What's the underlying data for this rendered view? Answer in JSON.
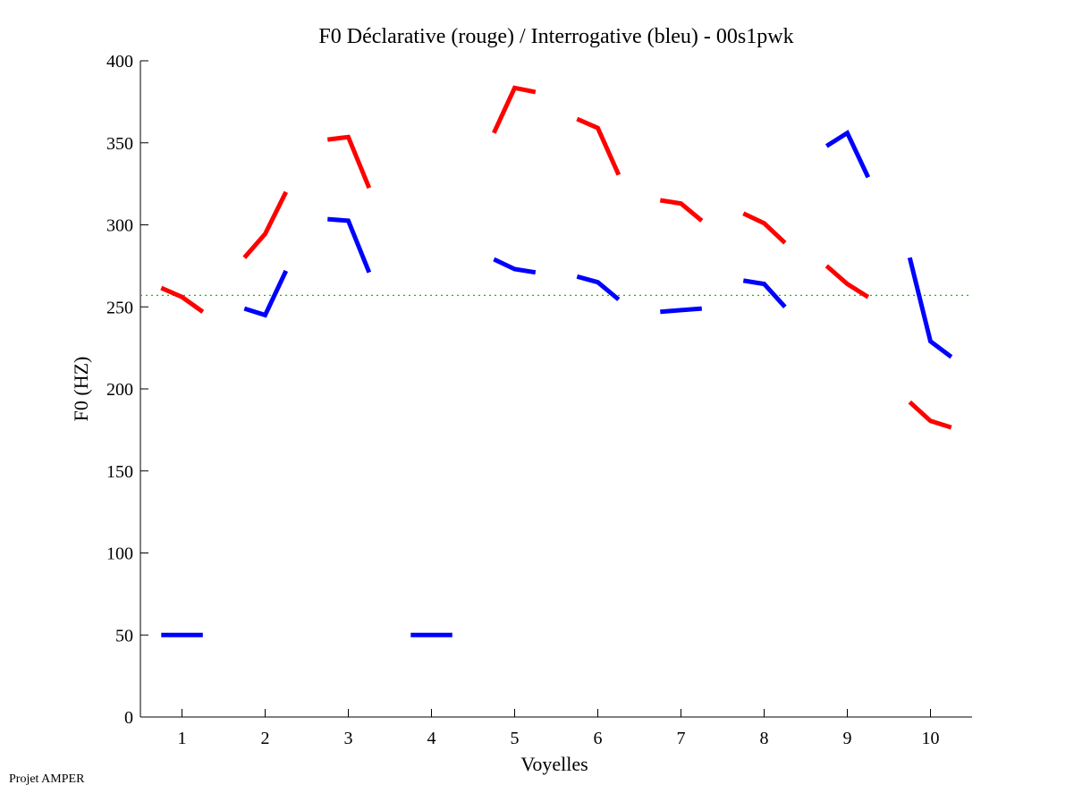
{
  "chart_data": {
    "type": "line",
    "title": "F0 Déclarative (rouge) / Interrogative (bleu) - 00s1pwk",
    "xlabel": "Voyelles",
    "ylabel": "F0 (HZ)",
    "xlim": [
      0.5,
      10.5
    ],
    "ylim": [
      0,
      400
    ],
    "xticks": [
      1,
      2,
      3,
      4,
      5,
      6,
      7,
      8,
      9,
      10
    ],
    "xtick_labels": [
      "1",
      "2",
      "3",
      "4",
      "5",
      "6",
      "7",
      "8",
      "9",
      "10"
    ],
    "yticks": [
      0,
      50,
      100,
      150,
      200,
      250,
      300,
      350,
      400
    ],
    "ytick_labels": [
      "0",
      "50",
      "100",
      "150",
      "200",
      "250",
      "300",
      "350",
      "400"
    ],
    "grid": false,
    "reference_line": {
      "y": 257,
      "color": "#00cc00",
      "style": "dotted"
    },
    "series": [
      {
        "name": "Déclarative",
        "color": "#ff0000",
        "segments": [
          {
            "vowel": 1,
            "values": [
              261.5,
              256,
              247
            ]
          },
          {
            "vowel": 2,
            "values": [
              280,
              294.5,
              320
            ]
          },
          {
            "vowel": 3,
            "values": [
              352,
              353.5,
              322.5
            ]
          },
          {
            "vowel": 5,
            "values": [
              356,
              383.5,
              381
            ]
          },
          {
            "vowel": 6,
            "values": [
              364.5,
              359,
              330.5
            ]
          },
          {
            "vowel": 7,
            "values": [
              315,
              313,
              302.5
            ]
          },
          {
            "vowel": 8,
            "values": [
              307,
              301,
              289
            ]
          },
          {
            "vowel": 9,
            "values": [
              275,
              264,
              256
            ]
          },
          {
            "vowel": 10,
            "values": [
              192,
              180.5,
              176.5
            ]
          }
        ]
      },
      {
        "name": "Interrogative",
        "color": "#0000ff",
        "segments": [
          {
            "vowel": 1,
            "values": [
              50,
              50,
              50
            ]
          },
          {
            "vowel": 2,
            "values": [
              249,
              245,
              272
            ]
          },
          {
            "vowel": 3,
            "values": [
              303.5,
              302.5,
              271
            ]
          },
          {
            "vowel": 4,
            "values": [
              50,
              50,
              50
            ]
          },
          {
            "vowel": 5,
            "values": [
              279,
              273,
              271
            ]
          },
          {
            "vowel": 6,
            "values": [
              268.5,
              265,
              254.5
            ]
          },
          {
            "vowel": 7,
            "values": [
              247,
              248,
              249
            ]
          },
          {
            "vowel": 8,
            "values": [
              266,
              264,
              250
            ]
          },
          {
            "vowel": 9,
            "values": [
              348,
              356,
              329
            ]
          },
          {
            "vowel": 10,
            "values": [
              280,
              229,
              219.5
            ]
          }
        ]
      }
    ]
  },
  "footer": "Projet AMPER"
}
